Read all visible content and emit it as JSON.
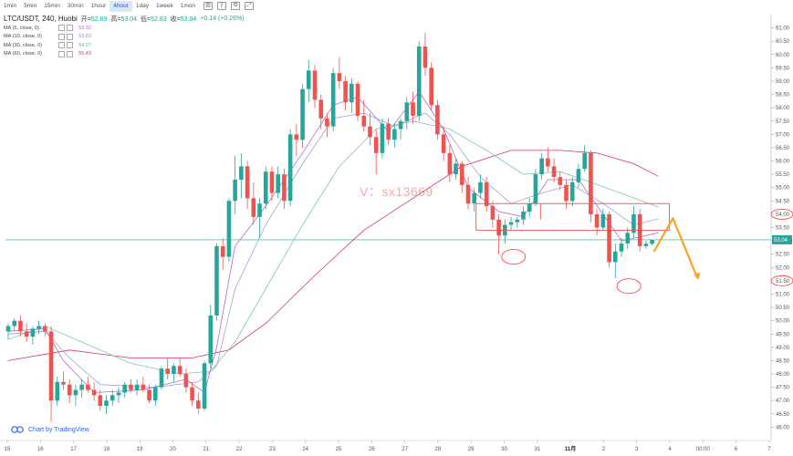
{
  "toolbar": {
    "intervals": [
      "1min",
      "5min",
      "15min",
      "30min",
      "1hour",
      "4hour",
      "1day",
      "1week",
      "1mon"
    ],
    "active": "4hour",
    "icons": [
      "candlestick-icon",
      "indicator-icon",
      "settings-icon",
      "fullscreen-icon"
    ]
  },
  "legend": {
    "symbol": "LTC/USDT, 240, Huobi",
    "ohlc": [
      {
        "key": "开=",
        "value": "52.89"
      },
      {
        "key": "高=",
        "value": "53.04"
      },
      {
        "key": "低=",
        "value": "52.83"
      },
      {
        "key": "收=",
        "value": "53.04"
      },
      {
        "key": "",
        "value": "+0.14 (+0.26%)"
      }
    ],
    "ma": [
      {
        "label": "MA (5, close, 0)",
        "value": "53.32",
        "color": "#b868c9"
      },
      {
        "label": "MA (10, close, 0)",
        "value": "53.83",
        "color": "#9aa3d6"
      },
      {
        "label": "MA (30, close, 0)",
        "value": "54.27",
        "color": "#7cc9a2"
      },
      {
        "label": "MA (60, close, 0)",
        "value": "55.43",
        "color": "#d6336c"
      }
    ]
  },
  "watermark": "V：sx13669",
  "brand": "Chart by TradingView",
  "chart_data": {
    "type": "candlestick",
    "ylim": [
      45.5,
      61.5
    ],
    "yticks": [
      "46.00",
      "46.50",
      "47.00",
      "47.50",
      "48.00",
      "48.50",
      "49.00",
      "49.50",
      "50.00",
      "50.50",
      "51.00",
      "51.50",
      "52.00",
      "52.50",
      "53.00",
      "53.50",
      "54.00",
      "54.50",
      "55.00",
      "55.50",
      "56.00",
      "56.50",
      "57.00",
      "57.50",
      "58.00",
      "58.50",
      "59.00",
      "59.50",
      "60.00",
      "60.50",
      "61.00"
    ],
    "xlabels": [
      "15",
      "16",
      "17",
      "18",
      "19",
      "20",
      "21",
      "22",
      "23",
      "24",
      "25",
      "26",
      "27",
      "28",
      "29",
      "30",
      "31",
      "11月",
      "2",
      "3",
      "4",
      "00:00",
      "6",
      "7"
    ],
    "xlabel_bold": "11月",
    "current_price": "53.04",
    "current_price_line": 53.04,
    "circled_prices": [
      "54.00",
      "51.50"
    ],
    "circled_price_values": [
      54.0,
      51.5
    ],
    "colors": {
      "up": "#26a69a",
      "down": "#ef5350",
      "annotation": "#ef5350",
      "forecast": "#f5a623"
    },
    "candles": [
      [
        49.6,
        49.9,
        49.3,
        49.8
      ],
      [
        49.8,
        50.1,
        49.6,
        50.0
      ],
      [
        50.0,
        50.2,
        49.4,
        49.6
      ],
      [
        49.6,
        49.9,
        49.2,
        49.4
      ],
      [
        49.4,
        49.8,
        49.1,
        49.7
      ],
      [
        49.7,
        50.0,
        49.5,
        49.8
      ],
      [
        49.8,
        49.9,
        49.4,
        49.6
      ],
      [
        49.6,
        49.8,
        46.2,
        47.0
      ],
      [
        47.0,
        47.9,
        46.8,
        47.7
      ],
      [
        47.7,
        48.1,
        47.4,
        47.6
      ],
      [
        47.6,
        47.8,
        46.9,
        47.2
      ],
      [
        47.2,
        47.6,
        46.8,
        47.4
      ],
      [
        47.4,
        47.8,
        47.1,
        47.6
      ],
      [
        47.6,
        47.9,
        47.3,
        47.4
      ],
      [
        47.4,
        47.7,
        47.0,
        47.2
      ],
      [
        47.2,
        47.4,
        46.6,
        46.8
      ],
      [
        46.8,
        47.2,
        46.5,
        47.0
      ],
      [
        47.0,
        47.4,
        46.8,
        47.2
      ],
      [
        47.2,
        47.5,
        46.9,
        47.3
      ],
      [
        47.3,
        47.7,
        47.1,
        47.6
      ],
      [
        47.6,
        47.8,
        47.3,
        47.4
      ],
      [
        47.4,
        47.8,
        47.2,
        47.6
      ],
      [
        47.6,
        47.9,
        47.3,
        47.4
      ],
      [
        47.4,
        47.6,
        46.9,
        47.0
      ],
      [
        47.0,
        47.6,
        46.8,
        47.5
      ],
      [
        47.5,
        48.3,
        47.4,
        48.2
      ],
      [
        48.2,
        48.6,
        47.8,
        48.0
      ],
      [
        48.0,
        48.4,
        47.7,
        48.3
      ],
      [
        48.3,
        48.6,
        47.9,
        48.0
      ],
      [
        48.0,
        48.2,
        47.3,
        47.5
      ],
      [
        47.5,
        47.7,
        46.8,
        47.0
      ],
      [
        47.0,
        47.3,
        46.5,
        46.7
      ],
      [
        46.7,
        48.5,
        46.6,
        48.4
      ],
      [
        48.4,
        50.6,
        48.2,
        50.2
      ],
      [
        50.2,
        52.9,
        50.0,
        52.8
      ],
      [
        52.8,
        53.1,
        51.9,
        52.4
      ],
      [
        52.4,
        54.6,
        52.2,
        54.5
      ],
      [
        54.5,
        56.2,
        54.0,
        55.3
      ],
      [
        55.3,
        56.3,
        54.6,
        55.8
      ],
      [
        55.8,
        56.0,
        54.2,
        54.6
      ],
      [
        54.6,
        55.2,
        53.6,
        53.9
      ],
      [
        53.9,
        54.6,
        53.1,
        54.4
      ],
      [
        54.4,
        55.8,
        54.2,
        55.6
      ],
      [
        55.6,
        55.8,
        54.5,
        54.8
      ],
      [
        54.8,
        55.8,
        54.6,
        55.5
      ],
      [
        55.5,
        55.7,
        54.2,
        54.5
      ],
      [
        54.5,
        57.2,
        54.3,
        57.0
      ],
      [
        57.0,
        57.4,
        56.2,
        56.8
      ],
      [
        56.8,
        58.9,
        56.5,
        58.7
      ],
      [
        58.7,
        59.8,
        58.2,
        59.4
      ],
      [
        59.4,
        59.6,
        58.0,
        58.3
      ],
      [
        58.3,
        58.5,
        57.2,
        57.6
      ],
      [
        57.6,
        57.8,
        56.9,
        57.3
      ],
      [
        57.3,
        59.5,
        57.1,
        59.3
      ],
      [
        59.3,
        59.9,
        58.7,
        59.0
      ],
      [
        59.0,
        59.2,
        57.9,
        58.2
      ],
      [
        58.2,
        59.1,
        57.8,
        58.9
      ],
      [
        58.9,
        59.0,
        57.5,
        57.7
      ],
      [
        57.7,
        58.3,
        57.1,
        57.3
      ],
      [
        57.3,
        57.8,
        56.6,
        56.9
      ],
      [
        56.9,
        57.2,
        55.5,
        56.3
      ],
      [
        56.3,
        57.6,
        56.1,
        57.4
      ],
      [
        57.4,
        57.6,
        56.6,
        56.8
      ],
      [
        56.8,
        57.4,
        56.5,
        57.2
      ],
      [
        57.2,
        57.6,
        56.8,
        57.5
      ],
      [
        57.5,
        58.4,
        57.2,
        58.2
      ],
      [
        58.2,
        58.6,
        57.4,
        57.7
      ],
      [
        57.7,
        60.5,
        57.5,
        60.3
      ],
      [
        60.3,
        60.8,
        59.2,
        59.5
      ],
      [
        59.5,
        59.7,
        57.9,
        58.1
      ],
      [
        58.1,
        58.3,
        56.8,
        57.0
      ],
      [
        57.0,
        57.3,
        56.0,
        56.3
      ],
      [
        56.3,
        56.6,
        55.2,
        55.5
      ],
      [
        55.5,
        56.1,
        55.3,
        55.9
      ],
      [
        55.9,
        56.0,
        54.8,
        55.1
      ],
      [
        55.1,
        55.4,
        54.2,
        54.4
      ],
      [
        54.4,
        55.0,
        54.1,
        54.8
      ],
      [
        54.8,
        55.5,
        54.6,
        55.2
      ],
      [
        55.2,
        55.4,
        54.1,
        54.3
      ],
      [
        54.3,
        54.5,
        53.5,
        53.8
      ],
      [
        53.8,
        54.0,
        52.5,
        53.2
      ],
      [
        53.2,
        53.8,
        52.9,
        53.6
      ],
      [
        53.6,
        53.9,
        53.4,
        53.7
      ],
      [
        53.7,
        53.9,
        53.5,
        53.8
      ],
      [
        53.8,
        54.3,
        53.6,
        54.1
      ],
      [
        54.1,
        54.6,
        53.9,
        54.4
      ],
      [
        54.4,
        55.7,
        54.3,
        55.5
      ],
      [
        55.5,
        56.3,
        55.3,
        56.1
      ],
      [
        56.1,
        56.5,
        55.6,
        55.8
      ],
      [
        55.8,
        56.1,
        55.2,
        55.4
      ],
      [
        55.4,
        55.6,
        54.9,
        55.1
      ],
      [
        55.1,
        55.3,
        54.2,
        54.5
      ],
      [
        54.5,
        55.4,
        54.3,
        55.2
      ],
      [
        55.2,
        55.9,
        55.0,
        55.7
      ],
      [
        55.7,
        56.6,
        55.6,
        56.3
      ],
      [
        56.3,
        56.4,
        53.7,
        54.0
      ],
      [
        54.0,
        54.2,
        53.2,
        53.5
      ],
      [
        53.5,
        54.2,
        53.4,
        54.0
      ],
      [
        54.0,
        54.1,
        52.0,
        52.2
      ],
      [
        52.2,
        52.9,
        51.6,
        52.6
      ],
      [
        52.6,
        53.1,
        52.4,
        52.9
      ],
      [
        52.9,
        53.5,
        52.7,
        53.3
      ],
      [
        53.3,
        54.3,
        53.1,
        54.0
      ],
      [
        54.0,
        54.2,
        52.6,
        52.8
      ],
      [
        52.8,
        53.0,
        52.7,
        52.89
      ],
      [
        52.89,
        53.04,
        52.83,
        53.04
      ]
    ],
    "ma5": [
      [
        0,
        49.6
      ],
      [
        6,
        49.7
      ],
      [
        9,
        48.5
      ],
      [
        14,
        47.3
      ],
      [
        22,
        47.4
      ],
      [
        29,
        47.8
      ],
      [
        32,
        47.3
      ],
      [
        34,
        49.0
      ],
      [
        37,
        52.8
      ],
      [
        42,
        54.3
      ],
      [
        48,
        56.3
      ],
      [
        53,
        58.1
      ],
      [
        57,
        58.4
      ],
      [
        62,
        57.1
      ],
      [
        67,
        58.6
      ],
      [
        71,
        57.2
      ],
      [
        75,
        55.0
      ],
      [
        80,
        54.1
      ],
      [
        84,
        53.9
      ],
      [
        88,
        55.3
      ],
      [
        93,
        55.3
      ],
      [
        97,
        54.0
      ],
      [
        100,
        53.0
      ],
      [
        106,
        53.3
      ]
    ],
    "ma10": [
      [
        0,
        49.5
      ],
      [
        6,
        49.6
      ],
      [
        10,
        48.6
      ],
      [
        15,
        47.6
      ],
      [
        24,
        47.5
      ],
      [
        31,
        47.7
      ],
      [
        34,
        48.3
      ],
      [
        37,
        51.2
      ],
      [
        42,
        53.6
      ],
      [
        48,
        55.9
      ],
      [
        53,
        57.6
      ],
      [
        58,
        57.8
      ],
      [
        63,
        57.3
      ],
      [
        68,
        57.8
      ],
      [
        72,
        57.0
      ],
      [
        77,
        55.4
      ],
      [
        82,
        54.4
      ],
      [
        87,
        54.8
      ],
      [
        92,
        55.1
      ],
      [
        97,
        54.4
      ],
      [
        102,
        53.6
      ],
      [
        106,
        53.83
      ]
    ],
    "ma30": [
      [
        0,
        49.3
      ],
      [
        6,
        49.8
      ],
      [
        12,
        49.2
      ],
      [
        20,
        48.4
      ],
      [
        28,
        48.0
      ],
      [
        33,
        48.1
      ],
      [
        37,
        49.2
      ],
      [
        42,
        51.2
      ],
      [
        48,
        53.6
      ],
      [
        54,
        55.8
      ],
      [
        60,
        57.2
      ],
      [
        66,
        57.5
      ],
      [
        72,
        57.2
      ],
      [
        78,
        56.4
      ],
      [
        84,
        55.5
      ],
      [
        90,
        55.6
      ],
      [
        95,
        55.2
      ],
      [
        101,
        54.7
      ],
      [
        106,
        54.27
      ]
    ],
    "ma60": [
      [
        0,
        48.5
      ],
      [
        10,
        48.9
      ],
      [
        20,
        48.6
      ],
      [
        30,
        48.6
      ],
      [
        36,
        48.9
      ],
      [
        42,
        49.9
      ],
      [
        50,
        51.7
      ],
      [
        58,
        53.4
      ],
      [
        66,
        54.6
      ],
      [
        74,
        55.8
      ],
      [
        82,
        56.4
      ],
      [
        90,
        56.4
      ],
      [
        96,
        56.3
      ],
      [
        102,
        55.9
      ],
      [
        106,
        55.43
      ]
    ],
    "annotations": {
      "box_top": 54.4,
      "box_bottom": 53.4,
      "box_x0": 76.3,
      "box_x1": 107.8,
      "box_split_x": 86.8,
      "box_split_top": 54.4,
      "box_split_bottom": 53.8,
      "circles": [
        [
          82.4,
          52.4
        ],
        [
          101.2,
          51.3
        ]
      ],
      "forecast": [
        [
          105.3,
          52.6
        ],
        [
          108.4,
          53.85
        ],
        [
          112.4,
          51.6
        ]
      ]
    }
  }
}
